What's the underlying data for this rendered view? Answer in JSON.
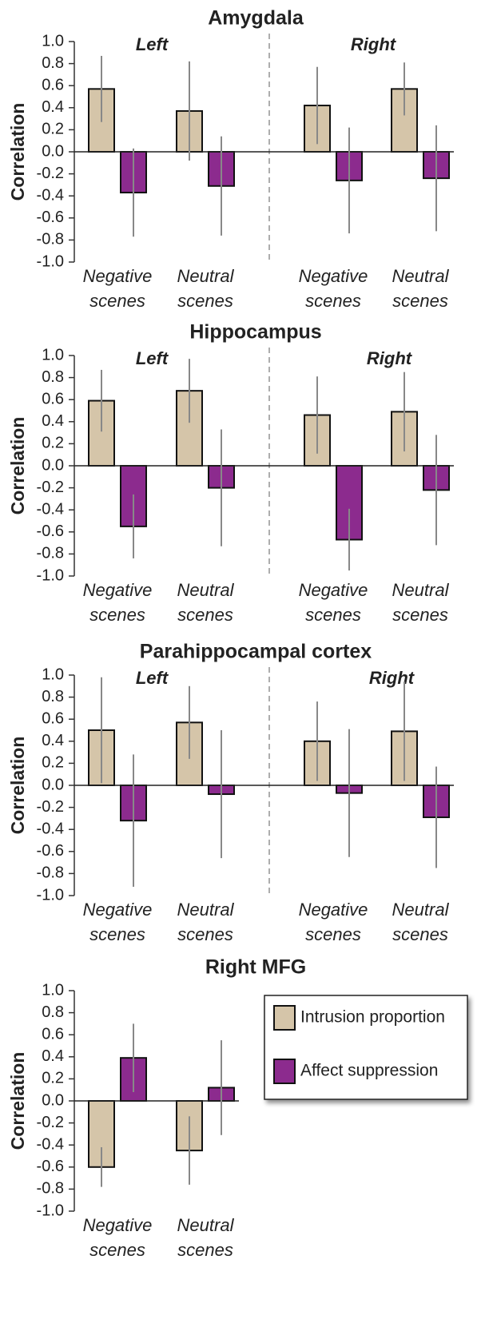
{
  "chart_data": [
    {
      "type": "bar",
      "title": "Amygdala",
      "ylabel": "Correlation",
      "annotations": [
        "Left",
        "Right"
      ],
      "categories": [
        "Negative scenes",
        "Neutral scenes",
        "Negative scenes",
        "Neutral scenes"
      ],
      "series": [
        {
          "color": "#d5c5a9",
          "values": [
            0.57,
            0.37,
            0.42,
            0.57
          ],
          "errors": [
            0.3,
            0.45,
            0.35,
            0.24
          ]
        },
        {
          "color": "#8c2b8e",
          "values": [
            -0.37,
            -0.31,
            -0.26,
            -0.24
          ],
          "errors": [
            0.4,
            0.45,
            0.48,
            0.48
          ]
        }
      ],
      "ylim": [
        -1,
        1
      ],
      "yticks": [
        {
          "value": -1,
          "label": "-1.0"
        },
        -0.8,
        -0.6,
        -0.4,
        -0.2,
        {
          "value": 0,
          "label": "0.0"
        },
        0.2,
        0.4,
        0.6,
        0.8,
        {
          "value": 1,
          "label": "1.0"
        }
      ]
    },
    {
      "type": "bar",
      "title": "Hippocampus",
      "ylabel": "Correlation",
      "annotations": [
        "Left",
        "Right"
      ],
      "categories": [
        "Negative scenes",
        "Neutral scenes",
        "Negative scenes",
        "Neutral scenes"
      ],
      "series": [
        {
          "color": "#d5c5a9",
          "values": [
            0.59,
            0.68,
            0.46,
            0.49
          ],
          "errors": [
            0.28,
            0.29,
            0.35,
            0.36
          ]
        },
        {
          "color": "#8c2b8e",
          "values": [
            -0.55,
            -0.2,
            -0.67,
            -0.22
          ],
          "errors": [
            0.29,
            0.53,
            0.28,
            0.5
          ]
        }
      ],
      "ylim": [
        -1,
        1
      ],
      "yticks": [
        {
          "value": -1,
          "label": "-1.0"
        },
        -0.8,
        -0.6,
        -0.4,
        -0.2,
        {
          "value": 0,
          "label": "0.0"
        },
        0.2,
        0.4,
        0.6,
        0.8,
        {
          "value": 1,
          "label": "1.0"
        }
      ]
    },
    {
      "type": "bar",
      "title": "Parahippocampal cortex",
      "ylabel": "Correlation",
      "annotations": [
        "Left",
        "Right"
      ],
      "categories": [
        "Negative scenes",
        "Neutral scenes",
        "Negative scenes",
        "Neutral scenes"
      ],
      "series": [
        {
          "color": "#d5c5a9",
          "values": [
            0.5,
            0.57,
            0.4,
            0.49
          ],
          "errors": [
            0.48,
            0.33,
            0.36,
            0.45
          ]
        },
        {
          "color": "#8c2b8e",
          "values": [
            -0.32,
            -0.08,
            -0.07,
            -0.29
          ],
          "errors": [
            0.6,
            0.58,
            0.58,
            0.46
          ]
        }
      ],
      "ylim": [
        -1,
        1
      ],
      "yticks": [
        {
          "value": -1,
          "label": "-1.0"
        },
        -0.8,
        -0.6,
        -0.4,
        -0.2,
        {
          "value": 0,
          "label": "0.0"
        },
        0.2,
        0.4,
        0.6,
        0.8,
        {
          "value": 1,
          "label": "1.0"
        }
      ]
    },
    {
      "type": "bar",
      "title": "Right MFG",
      "ylabel": "Correlation",
      "categories": [
        "Negative scenes",
        "Neutral scenes"
      ],
      "series": [
        {
          "name": "Intrusion proportion",
          "color": "#d5c5a9",
          "values": [
            -0.6,
            -0.45
          ],
          "errors": [
            0.18,
            0.31
          ]
        },
        {
          "name": "Affect suppression",
          "color": "#8c2b8e",
          "values": [
            0.39,
            0.12
          ],
          "errors": [
            0.31,
            0.43
          ]
        }
      ],
      "ylim": [
        -1,
        1
      ],
      "yticks": [
        {
          "value": -1,
          "label": "-1.0"
        },
        -0.8,
        -0.6,
        -0.4,
        -0.2,
        {
          "value": 0,
          "label": "0.0"
        },
        0.2,
        0.4,
        0.6,
        0.8,
        {
          "value": 1,
          "label": "1.0"
        }
      ]
    }
  ]
}
